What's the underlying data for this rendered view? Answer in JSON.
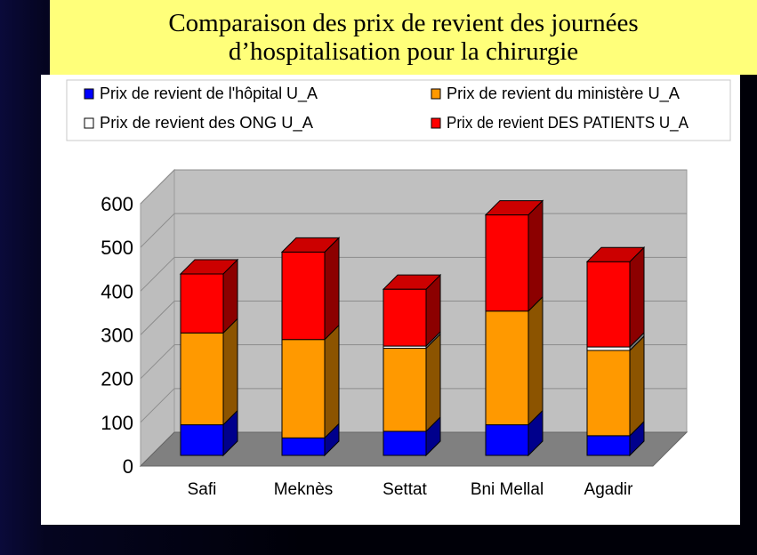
{
  "title": {
    "line1": "Comparaison des prix de revient des journées",
    "line2": "d’hospitalisation pour la chirurgie"
  },
  "chart_data": {
    "type": "bar",
    "stacked": true,
    "three_d": true,
    "categories": [
      "Safi",
      "Meknès",
      "Settat",
      "Bni Mellal",
      "Agadir"
    ],
    "series": [
      {
        "name": "Prix de revient de l'hôpital U_A",
        "color": "#0000ff",
        "values": [
          70,
          40,
          55,
          70,
          45
        ]
      },
      {
        "name": "Prix de revient du ministère  U_A",
        "color": "#ff9900",
        "values": [
          210,
          225,
          190,
          260,
          195
        ]
      },
      {
        "name": "Prix de revient  des ONG  U_A",
        "color": "#ffffff",
        "values": [
          0,
          0,
          5,
          0,
          8
        ]
      },
      {
        "name": "Prix de revient DES PATIENTS U_A",
        "color": "#ff0000",
        "values": [
          135,
          200,
          130,
          220,
          195
        ]
      }
    ],
    "y_ticks": [
      "0",
      "100",
      "200",
      "300",
      "400",
      "500",
      "600"
    ],
    "ylim": [
      0,
      600
    ],
    "grid": true,
    "legend_position": "top",
    "wall_color": "#c0c0c0",
    "floor_color": "#808080"
  }
}
